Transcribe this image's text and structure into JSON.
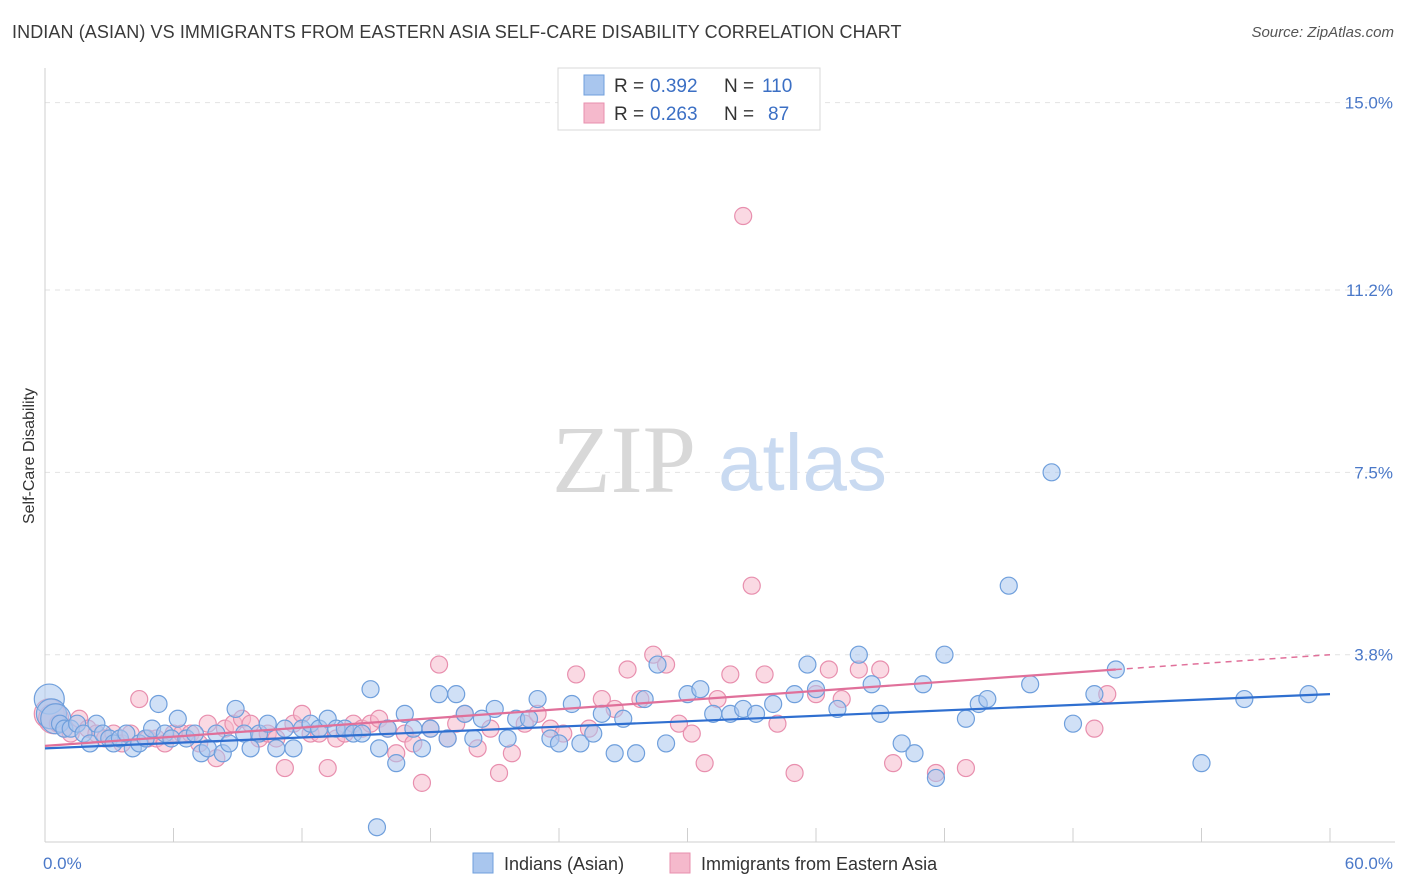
{
  "title": "INDIAN (ASIAN) VS IMMIGRANTS FROM EASTERN ASIA SELF-CARE DISABILITY CORRELATION CHART",
  "source": "Source: ZipAtlas.com",
  "watermark": {
    "zip": "ZIP",
    "atlas": "atlas"
  },
  "colors": {
    "blue_fill": "#a9c6ee",
    "blue_stroke": "#6f9fdc",
    "blue_line": "#2f6fd0",
    "pink_fill": "#f5b9cc",
    "pink_stroke": "#e88fae",
    "pink_line": "#e0709a",
    "grid": "#e2e2e2",
    "tick_label": "#4a78c8"
  },
  "legend": {
    "r_label": "R =",
    "n_label": "N =",
    "series": [
      {
        "r": "0.392",
        "n": "110"
      },
      {
        "r": "0.263",
        "n": "87"
      }
    ]
  },
  "chart_data": {
    "type": "scatter",
    "xlabel": "",
    "ylabel": "Self-Care Disability",
    "xlim": [
      0,
      60
    ],
    "ylim": [
      0,
      15.5
    ],
    "x_tick_labels": [
      "0.0%",
      "60.0%"
    ],
    "y_ticks": [
      3.8,
      7.5,
      11.2,
      15.0
    ],
    "y_tick_labels": [
      "3.8%",
      "7.5%",
      "11.2%",
      "15.0%"
    ],
    "grid": true,
    "legend_position": "top-center",
    "series": [
      {
        "name": "Indians (Asian)",
        "trend": {
          "x": [
            0,
            60
          ],
          "y": [
            1.9,
            3.0
          ]
        },
        "points": [
          [
            0.2,
            2.9
          ],
          [
            0.3,
            2.6
          ],
          [
            0.5,
            2.5
          ],
          [
            0.7,
            2.4
          ],
          [
            0.9,
            2.3
          ],
          [
            1.2,
            2.3
          ],
          [
            1.5,
            2.4
          ],
          [
            1.8,
            2.2
          ],
          [
            2.1,
            2.0
          ],
          [
            2.4,
            2.4
          ],
          [
            2.7,
            2.2
          ],
          [
            3.0,
            2.1
          ],
          [
            3.2,
            2.0
          ],
          [
            3.5,
            2.1
          ],
          [
            3.8,
            2.2
          ],
          [
            4.1,
            1.9
          ],
          [
            4.4,
            2.0
          ],
          [
            4.7,
            2.1
          ],
          [
            5.0,
            2.3
          ],
          [
            5.3,
            2.8
          ],
          [
            5.6,
            2.2
          ],
          [
            5.9,
            2.1
          ],
          [
            6.2,
            2.5
          ],
          [
            6.6,
            2.1
          ],
          [
            7.0,
            2.2
          ],
          [
            7.3,
            1.8
          ],
          [
            7.6,
            1.9
          ],
          [
            8.0,
            2.2
          ],
          [
            8.3,
            1.8
          ],
          [
            8.6,
            2.0
          ],
          [
            8.9,
            2.7
          ],
          [
            9.3,
            2.2
          ],
          [
            9.6,
            1.9
          ],
          [
            10.0,
            2.2
          ],
          [
            10.4,
            2.4
          ],
          [
            10.8,
            1.9
          ],
          [
            11.2,
            2.3
          ],
          [
            11.6,
            1.9
          ],
          [
            12.0,
            2.3
          ],
          [
            12.4,
            2.4
          ],
          [
            12.8,
            2.3
          ],
          [
            13.2,
            2.5
          ],
          [
            13.6,
            2.3
          ],
          [
            14.0,
            2.3
          ],
          [
            14.4,
            2.2
          ],
          [
            14.8,
            2.2
          ],
          [
            15.2,
            3.1
          ],
          [
            15.6,
            1.9
          ],
          [
            16.0,
            2.3
          ],
          [
            16.4,
            1.6
          ],
          [
            16.8,
            2.6
          ],
          [
            17.2,
            2.3
          ],
          [
            17.6,
            1.9
          ],
          [
            18.0,
            2.3
          ],
          [
            18.4,
            3.0
          ],
          [
            18.8,
            2.1
          ],
          [
            19.2,
            3.0
          ],
          [
            19.6,
            2.6
          ],
          [
            20.0,
            2.1
          ],
          [
            20.4,
            2.5
          ],
          [
            21.0,
            2.7
          ],
          [
            21.6,
            2.1
          ],
          [
            22.0,
            2.5
          ],
          [
            22.6,
            2.5
          ],
          [
            23.0,
            2.9
          ],
          [
            23.6,
            2.1
          ],
          [
            24.0,
            2.0
          ],
          [
            24.6,
            2.8
          ],
          [
            25.0,
            2.0
          ],
          [
            25.6,
            2.2
          ],
          [
            26.0,
            2.6
          ],
          [
            26.6,
            1.8
          ],
          [
            27.0,
            2.5
          ],
          [
            27.6,
            1.8
          ],
          [
            28.0,
            2.9
          ],
          [
            28.6,
            3.6
          ],
          [
            29.0,
            2.0
          ],
          [
            30.0,
            3.0
          ],
          [
            30.6,
            3.1
          ],
          [
            31.2,
            2.6
          ],
          [
            32.0,
            2.6
          ],
          [
            32.6,
            2.7
          ],
          [
            33.2,
            2.6
          ],
          [
            34.0,
            2.8
          ],
          [
            35.0,
            3.0
          ],
          [
            35.6,
            3.6
          ],
          [
            36.0,
            3.1
          ],
          [
            37.0,
            2.7
          ],
          [
            38.0,
            3.8
          ],
          [
            38.6,
            3.2
          ],
          [
            39.0,
            2.6
          ],
          [
            40.0,
            2.0
          ],
          [
            40.6,
            1.8
          ],
          [
            41.0,
            3.2
          ],
          [
            41.6,
            1.3
          ],
          [
            42.0,
            3.8
          ],
          [
            43.0,
            2.5
          ],
          [
            43.6,
            2.8
          ],
          [
            44.0,
            2.9
          ],
          [
            45.0,
            5.2
          ],
          [
            46.0,
            3.2
          ],
          [
            47.0,
            7.5
          ],
          [
            48.0,
            2.4
          ],
          [
            49.0,
            3.0
          ],
          [
            50.0,
            3.5
          ],
          [
            54.0,
            1.6
          ],
          [
            56.0,
            2.9
          ],
          [
            59.0,
            3.0
          ],
          [
            15.5,
            0.3
          ]
        ]
      },
      {
        "name": "Immigrants from Eastern Asia",
        "trend": {
          "x": [
            0,
            50
          ],
          "y": [
            1.95,
            3.5
          ]
        },
        "trend_dashed": {
          "x": [
            50,
            60
          ],
          "y": [
            3.5,
            3.8
          ]
        },
        "points": [
          [
            0.2,
            2.6
          ],
          [
            0.4,
            2.5
          ],
          [
            0.6,
            2.4
          ],
          [
            0.9,
            2.3
          ],
          [
            1.2,
            2.2
          ],
          [
            1.6,
            2.5
          ],
          [
            2.0,
            2.3
          ],
          [
            2.4,
            2.2
          ],
          [
            2.8,
            2.1
          ],
          [
            3.2,
            2.2
          ],
          [
            3.6,
            2.0
          ],
          [
            4.0,
            2.2
          ],
          [
            4.4,
            2.9
          ],
          [
            4.8,
            2.1
          ],
          [
            5.2,
            2.1
          ],
          [
            5.6,
            2.0
          ],
          [
            6.0,
            2.2
          ],
          [
            6.4,
            2.2
          ],
          [
            6.8,
            2.2
          ],
          [
            7.2,
            2.0
          ],
          [
            7.6,
            2.4
          ],
          [
            8.0,
            1.7
          ],
          [
            8.4,
            2.3
          ],
          [
            8.8,
            2.4
          ],
          [
            9.2,
            2.5
          ],
          [
            9.6,
            2.4
          ],
          [
            10.0,
            2.1
          ],
          [
            10.4,
            2.2
          ],
          [
            10.8,
            2.1
          ],
          [
            11.2,
            1.5
          ],
          [
            11.6,
            2.4
          ],
          [
            12.0,
            2.6
          ],
          [
            12.4,
            2.2
          ],
          [
            12.8,
            2.2
          ],
          [
            13.2,
            1.5
          ],
          [
            13.6,
            2.1
          ],
          [
            14.0,
            2.2
          ],
          [
            14.4,
            2.4
          ],
          [
            14.8,
            2.3
          ],
          [
            15.2,
            2.4
          ],
          [
            15.6,
            2.5
          ],
          [
            16.0,
            2.3
          ],
          [
            16.4,
            1.8
          ],
          [
            16.8,
            2.2
          ],
          [
            17.2,
            2.0
          ],
          [
            17.6,
            1.2
          ],
          [
            18.0,
            2.3
          ],
          [
            18.4,
            3.6
          ],
          [
            18.8,
            2.1
          ],
          [
            19.2,
            2.4
          ],
          [
            19.6,
            2.6
          ],
          [
            20.2,
            1.9
          ],
          [
            20.8,
            2.3
          ],
          [
            21.2,
            1.4
          ],
          [
            21.8,
            1.8
          ],
          [
            22.4,
            2.4
          ],
          [
            23.0,
            2.6
          ],
          [
            23.6,
            2.3
          ],
          [
            24.2,
            2.2
          ],
          [
            24.8,
            3.4
          ],
          [
            25.4,
            2.3
          ],
          [
            26.0,
            2.9
          ],
          [
            26.6,
            2.7
          ],
          [
            27.2,
            3.5
          ],
          [
            27.8,
            2.9
          ],
          [
            28.4,
            3.8
          ],
          [
            29.0,
            3.6
          ],
          [
            29.6,
            2.4
          ],
          [
            30.2,
            2.2
          ],
          [
            30.8,
            1.6
          ],
          [
            31.4,
            2.9
          ],
          [
            32.0,
            3.4
          ],
          [
            32.6,
            12.7
          ],
          [
            33.0,
            5.2
          ],
          [
            33.6,
            3.4
          ],
          [
            34.2,
            2.4
          ],
          [
            35.0,
            1.4
          ],
          [
            36.0,
            3.0
          ],
          [
            36.6,
            3.5
          ],
          [
            37.2,
            2.9
          ],
          [
            38.0,
            3.5
          ],
          [
            39.0,
            3.5
          ],
          [
            39.6,
            1.6
          ],
          [
            41.6,
            1.4
          ],
          [
            43.0,
            1.5
          ],
          [
            49.0,
            2.3
          ],
          [
            49.6,
            3.0
          ]
        ]
      }
    ],
    "bottom_legend_position": "bottom-center"
  }
}
